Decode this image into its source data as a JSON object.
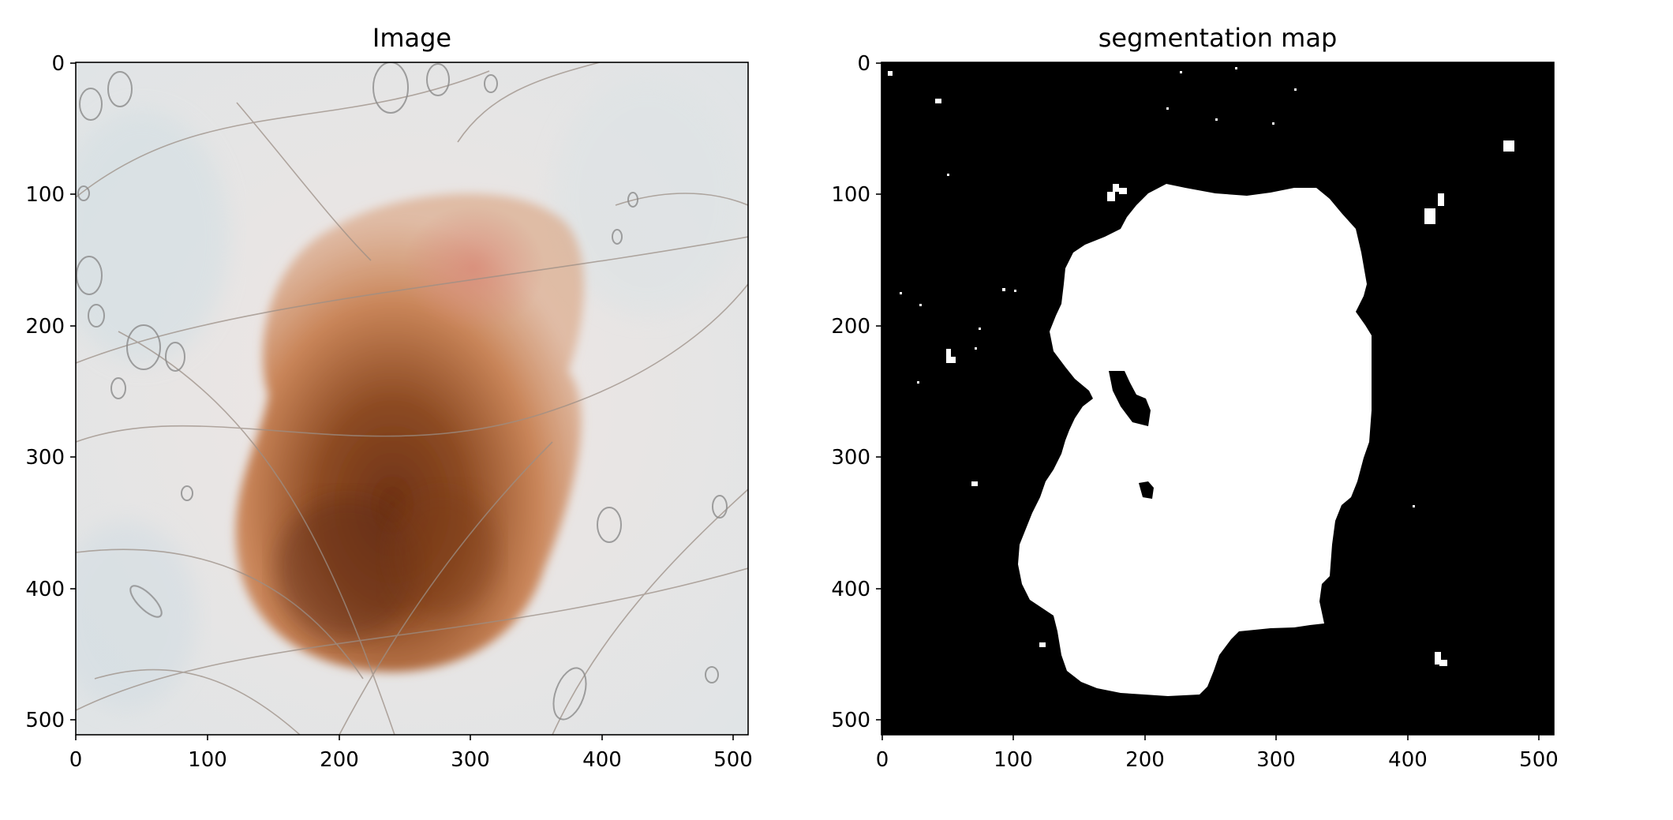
{
  "panels": [
    {
      "title": "Image",
      "xticks": [
        "0",
        "100",
        "200",
        "300",
        "400",
        "500"
      ],
      "yticks": [
        "0",
        "100",
        "200",
        "300",
        "400",
        "500"
      ]
    },
    {
      "title": "segmentation map",
      "xticks": [
        "0",
        "100",
        "200",
        "300",
        "400",
        "500"
      ],
      "yticks": [
        "0",
        "100",
        "200",
        "300",
        "400",
        "500"
      ]
    }
  ],
  "image_extent": [
    0,
    512
  ],
  "colors": {
    "skin": "#e9e3de",
    "lesion_light": "#c98559",
    "lesion_pink": "#d98a78",
    "lesion_dark": "#6e3216",
    "mask_fg": "#ffffff",
    "mask_bg": "#000000"
  }
}
